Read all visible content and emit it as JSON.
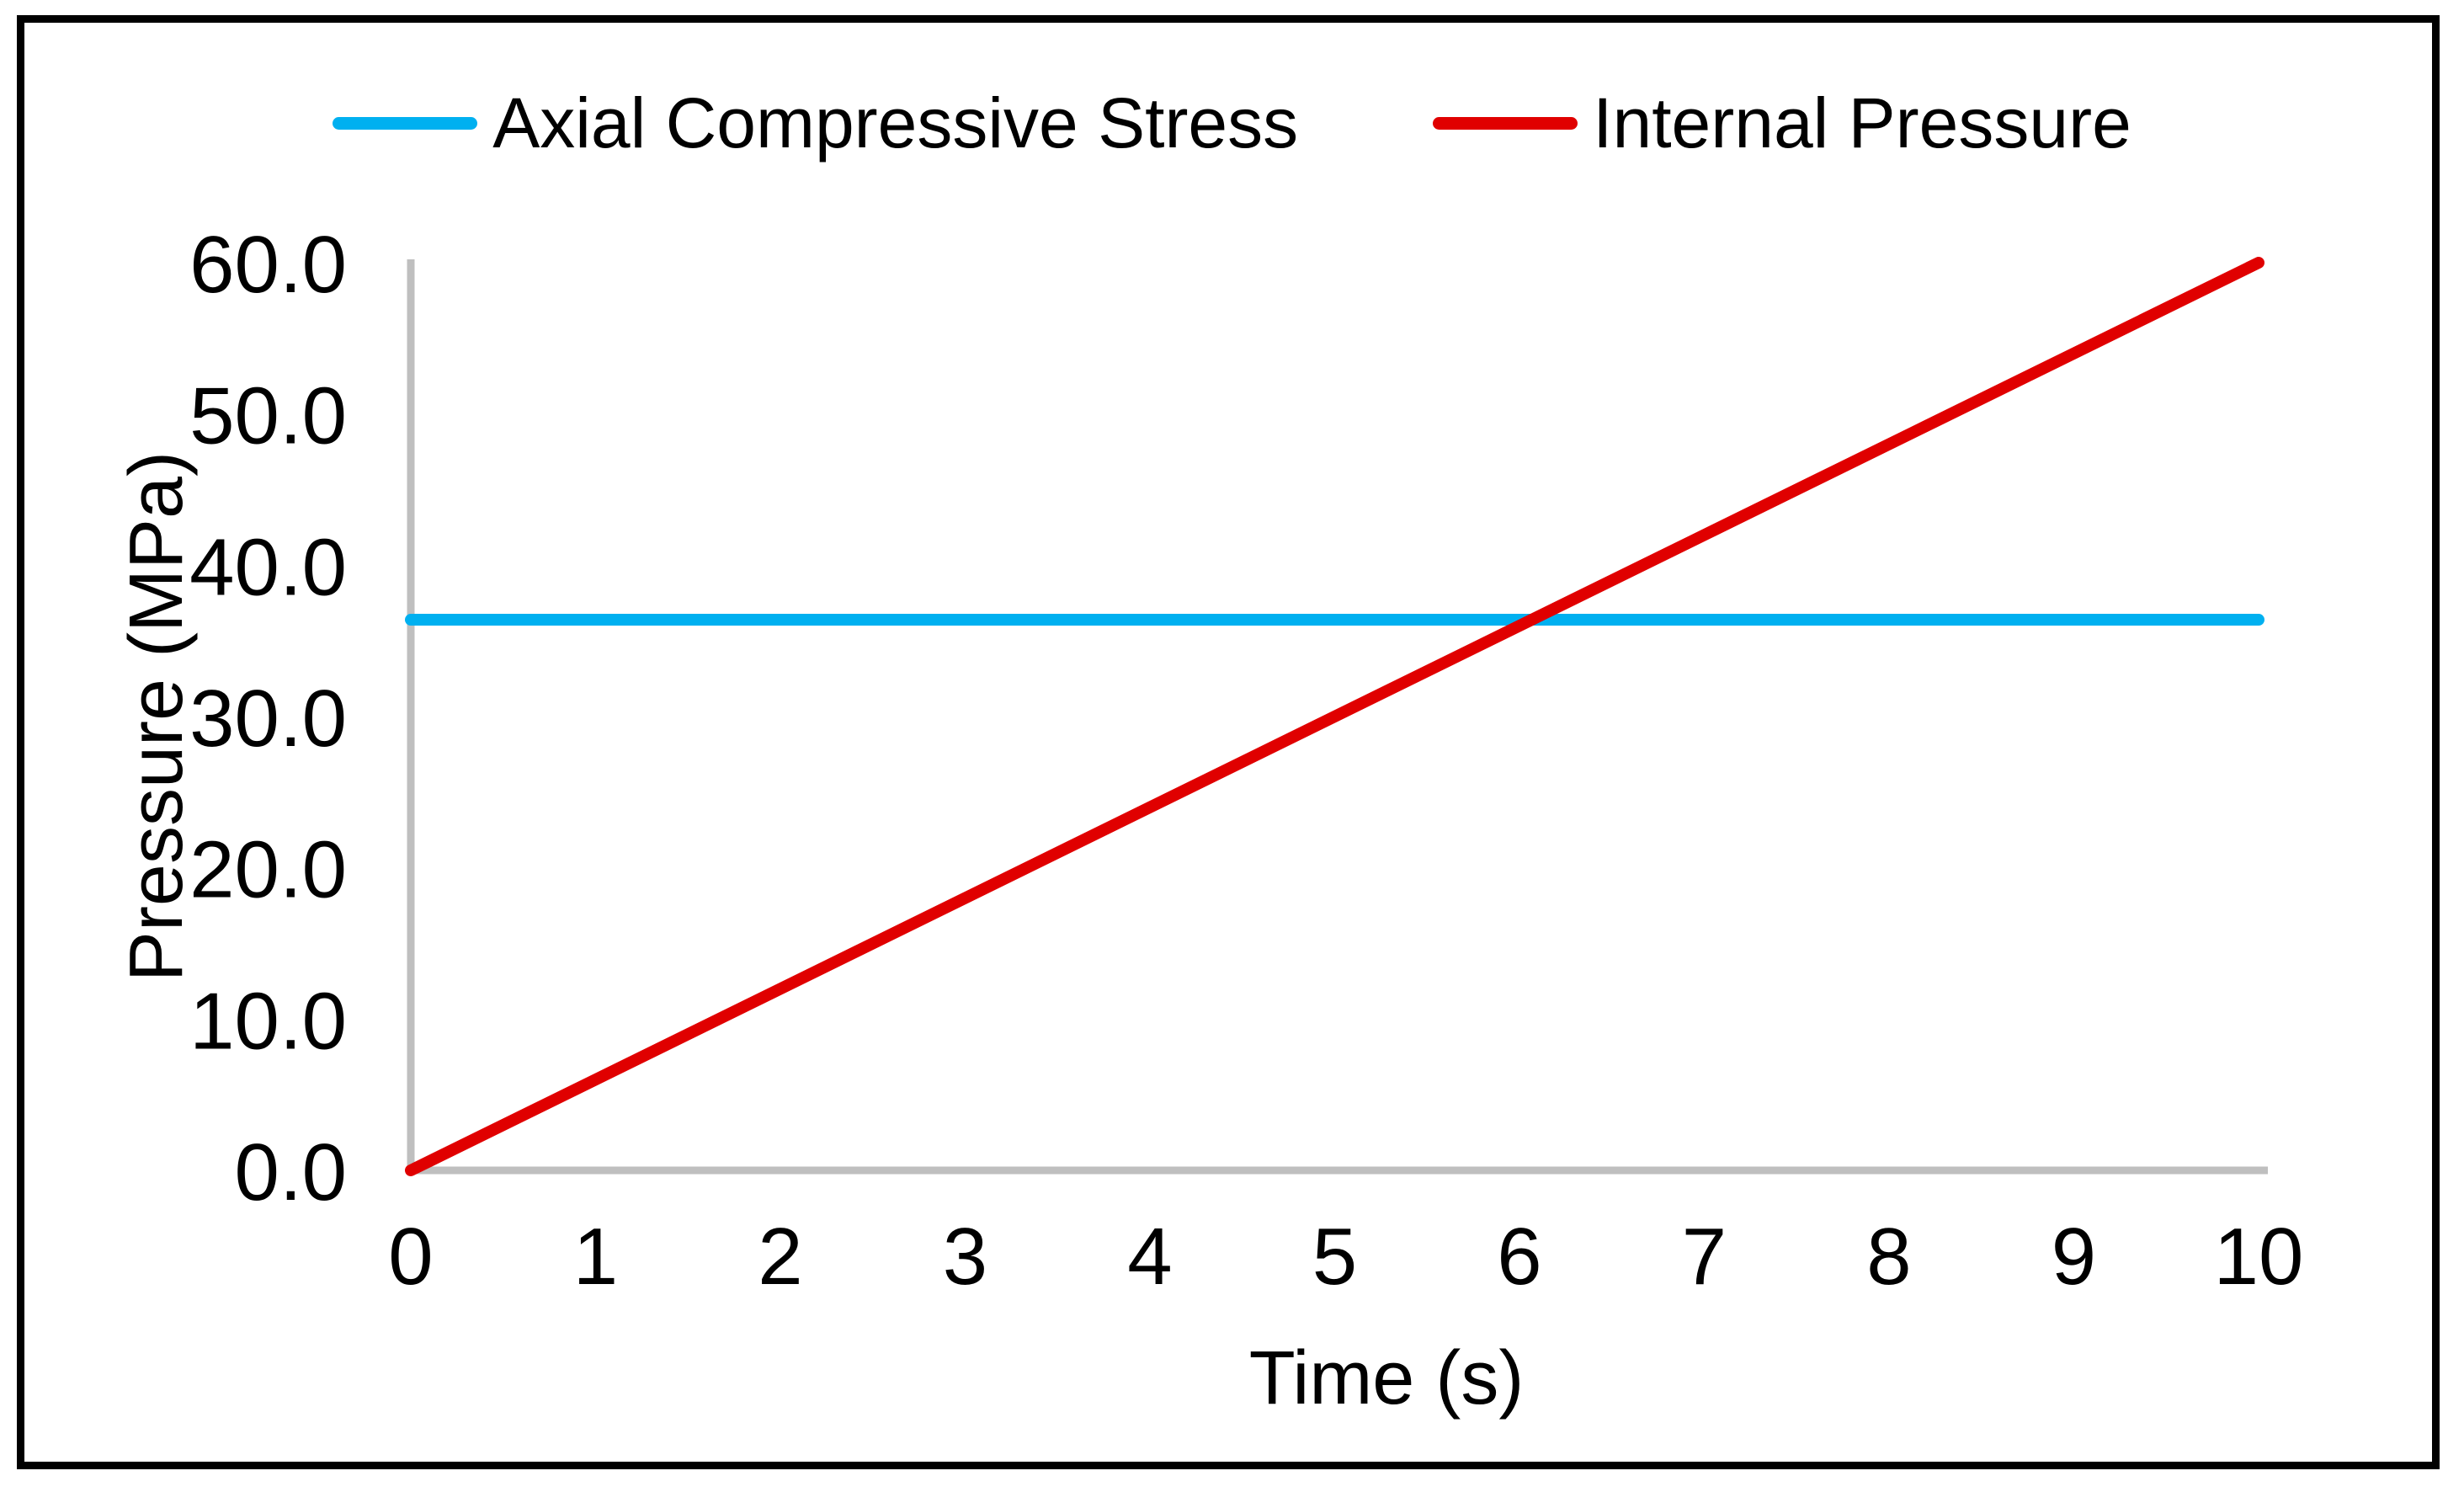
{
  "figure": {
    "background_color": "#FFFFFF",
    "border_color": "#000000",
    "text_color": "#000000"
  },
  "chart_data": {
    "type": "line",
    "title": "",
    "xlabel": "Time (s)",
    "ylabel": "Pressure (MPa)",
    "xlim": [
      0,
      10
    ],
    "ylim": [
      0,
      60
    ],
    "x_ticks": [
      0,
      1,
      2,
      3,
      4,
      5,
      6,
      7,
      8,
      9,
      10
    ],
    "x_tick_labels": [
      "0",
      "1",
      "2",
      "3",
      "4",
      "5",
      "6",
      "7",
      "8",
      "9",
      "10"
    ],
    "y_ticks": [
      0,
      10,
      20,
      30,
      40,
      50,
      60
    ],
    "y_tick_labels": [
      "0.0",
      "10.0",
      "20.0",
      "30.0",
      "40.0",
      "50.0",
      "60.0"
    ],
    "grid": false,
    "legend_position": "top-center",
    "axis_color": "#BFBFBF",
    "series": [
      {
        "name": "Axial Compressive Stress",
        "color": "#00B0F0",
        "x": [
          0,
          10
        ],
        "y": [
          36.4,
          36.4
        ]
      },
      {
        "name": "Internal Pressure",
        "color": "#E00000",
        "x": [
          0,
          10
        ],
        "y": [
          0,
          60
        ]
      }
    ],
    "notes": {
      "intersection_time_s": 6.1,
      "intersection_pressure_mpa": 36.4
    }
  }
}
